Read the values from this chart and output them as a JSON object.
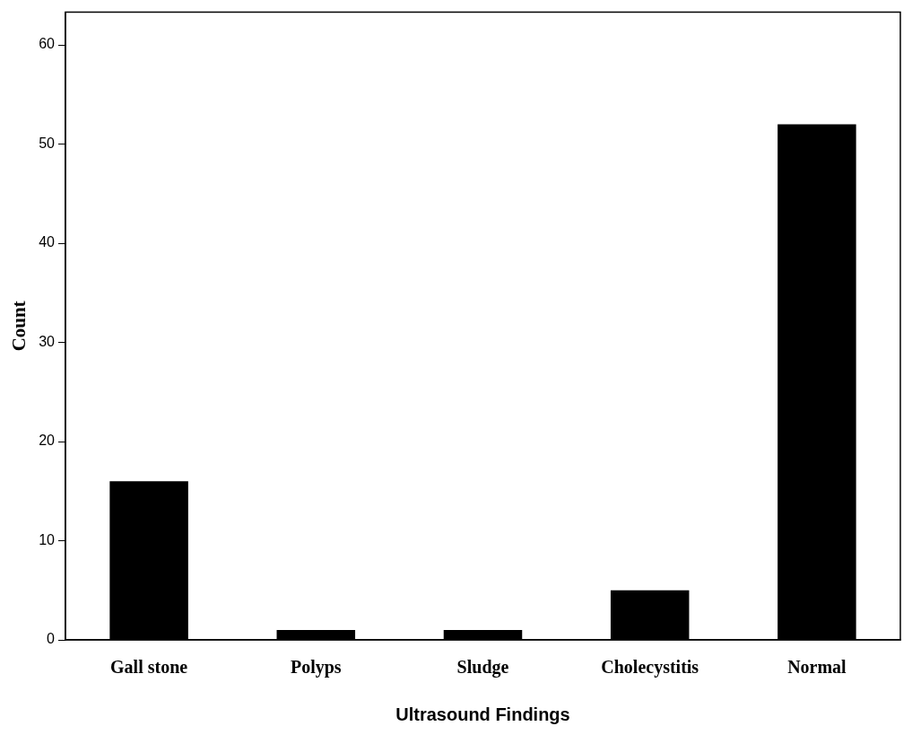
{
  "chart_data": {
    "type": "bar",
    "xlabel": "Ultrasound Findings",
    "ylabel": "Count",
    "categories": [
      "Gall stone",
      "Polyps",
      "Sludge",
      "Cholecystitis",
      "Normal"
    ],
    "values": [
      16,
      1,
      1,
      5,
      52
    ],
    "color": "#000000",
    "ylim": [
      0,
      63.3
    ],
    "yticks": [
      0,
      10,
      20,
      30,
      40,
      50,
      60
    ],
    "grid": false,
    "legend": false
  }
}
